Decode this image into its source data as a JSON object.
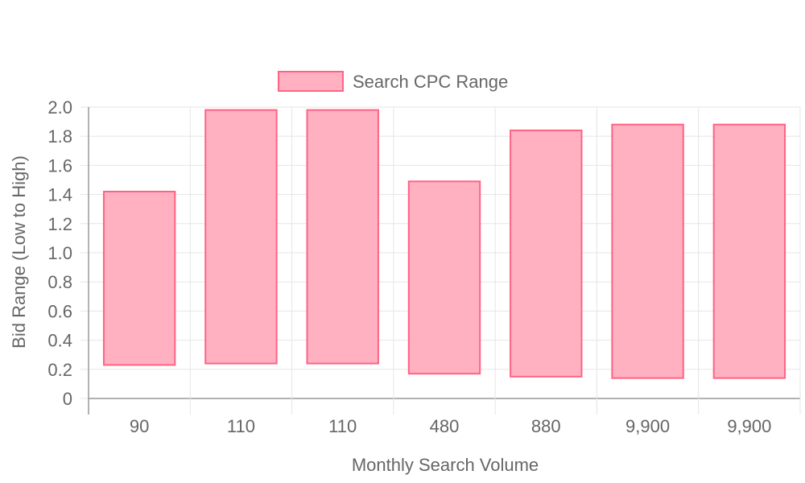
{
  "chart_data": {
    "type": "floating-bar",
    "title": "",
    "xlabel": "Monthly Search Volume",
    "ylabel": "Bid Range (Low to High)",
    "ylim": [
      0,
      2.0
    ],
    "yticks": [
      "0",
      "0.2",
      "0.4",
      "0.6",
      "0.8",
      "1.0",
      "1.2",
      "1.4",
      "1.6",
      "1.8",
      "2.0"
    ],
    "categories": [
      "90",
      "110",
      "110",
      "480",
      "880",
      "9,900",
      "9,900"
    ],
    "legend": {
      "position": "top",
      "label": "Search CPC Range"
    },
    "grid": true,
    "series": [
      {
        "name": "Search CPC Range",
        "color": "#ff6384",
        "fill": "#ffb1c1",
        "low": [
          0.23,
          0.24,
          0.24,
          0.17,
          0.15,
          0.14,
          0.14
        ],
        "high": [
          1.42,
          1.98,
          1.98,
          1.49,
          1.84,
          1.88,
          1.88
        ]
      }
    ]
  }
}
